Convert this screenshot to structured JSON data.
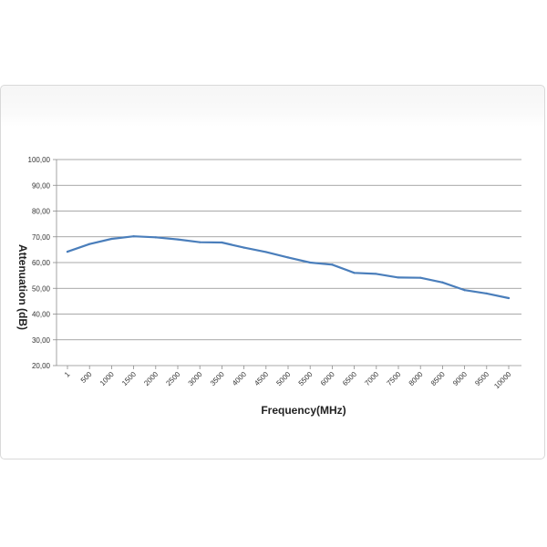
{
  "chart_data": {
    "type": "line",
    "xlabel": "Frequency(MHz)",
    "ylabel": "Attenuation (dB)",
    "ylim": [
      20,
      100
    ],
    "y_ticks": [
      "20,00",
      "30,00",
      "40,00",
      "50,00",
      "60,00",
      "70,00",
      "80,00",
      "90,00",
      "100,00"
    ],
    "categories": [
      "1",
      "500",
      "1000",
      "1500",
      "2000",
      "2500",
      "3000",
      "3500",
      "4000",
      "4500",
      "5000",
      "5500",
      "6000",
      "6500",
      "7000",
      "7500",
      "8000",
      "8500",
      "9000",
      "9500",
      "10000"
    ],
    "series": [
      {
        "values": [
          64.2,
          67.2,
          69.2,
          70.2,
          69.8,
          69.0,
          67.9,
          67.8,
          65.8,
          64.1,
          62.0,
          60.0,
          59.2,
          56.0,
          55.6,
          54.2,
          54.1,
          52.3,
          49.3,
          48.0,
          46.2
        ]
      }
    ],
    "grid": true,
    "legend": "none",
    "line_color": "#4a7ebb"
  }
}
